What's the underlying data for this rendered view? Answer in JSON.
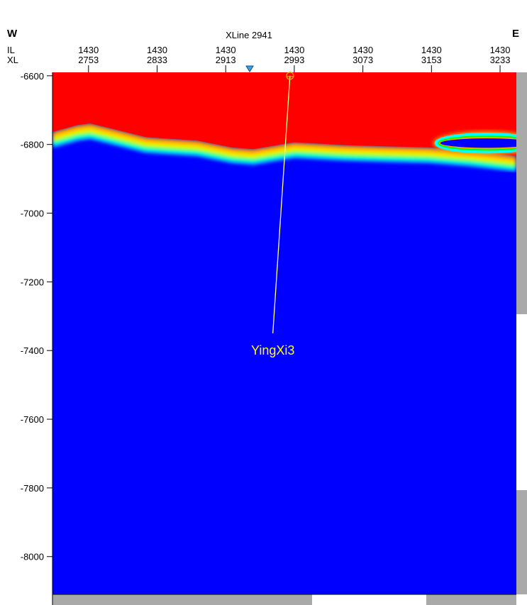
{
  "header": {
    "west_label": "W",
    "east_label": "E",
    "title": "XLine 2941",
    "il_label": "IL",
    "xl_label": "XL"
  },
  "chart_data": {
    "type": "heatmap",
    "title": "XLine 2941",
    "x_axis": {
      "label_rows": [
        "IL",
        "XL"
      ],
      "ticks": [
        {
          "il": "1430",
          "xl": "2753"
        },
        {
          "il": "1430",
          "xl": "2833"
        },
        {
          "il": "1430",
          "xl": "2913"
        },
        {
          "il": "1430",
          "xl": "2993"
        },
        {
          "il": "1430",
          "xl": "3073"
        },
        {
          "il": "1430",
          "xl": "3153"
        },
        {
          "il": "1430",
          "xl": "3233"
        }
      ],
      "xl_range": [
        2711,
        3252
      ]
    },
    "y_axis": {
      "ticks": [
        "-6600",
        "-6800",
        "-7000",
        "-7200",
        "-7400",
        "-7600",
        "-7800",
        "-8000"
      ],
      "range": [
        -6590,
        -8110
      ]
    },
    "colors": {
      "upper_zone": "#ff0000",
      "lower_zone": "#0000ff",
      "transition": [
        "#ffa500",
        "#ffff00",
        "#00ff00",
        "#00ffff"
      ]
    },
    "boundary": {
      "xl": [
        2711,
        2740,
        2755,
        2780,
        2820,
        2850,
        2880,
        2920,
        2945,
        2993,
        3050,
        3100,
        3150,
        3200,
        3252
      ],
      "depth": [
        -6780,
        -6760,
        -6755,
        -6770,
        -6795,
        -6800,
        -6805,
        -6825,
        -6830,
        -6810,
        -6818,
        -6822,
        -6825,
        -6835,
        -6850
      ]
    },
    "lens": {
      "xl_range": [
        3150,
        3252
      ],
      "top_depth": -6770,
      "bottom_depth": -6822
    },
    "well": {
      "name": "YingXi3",
      "top": {
        "xl": 2988,
        "depth": -6600
      },
      "bottom": {
        "xl": 2968,
        "depth": -7350
      }
    },
    "xline_marker_xl": 2941
  }
}
